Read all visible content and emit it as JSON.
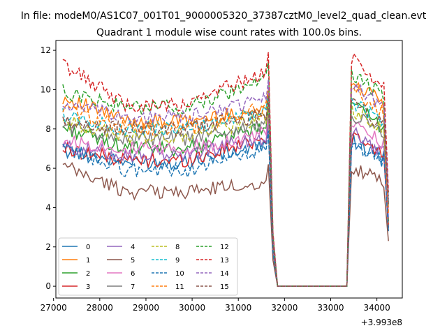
{
  "chart_data": {
    "type": "line",
    "suptitle": "In file: modeM0/AS1C07_001T01_9000005320_37387cztM0_level2_quad_clean.evt",
    "title": "Quadrant 1 module wise count rates with 100.0s bins.",
    "xlabel": "",
    "ylabel": "",
    "x_offset_label": "+3.993e8",
    "xlim": [
      27050,
      34550
    ],
    "ylim": [
      -0.6,
      12.5
    ],
    "xticks": [
      27000,
      28000,
      29000,
      30000,
      31000,
      32000,
      33000,
      34000
    ],
    "xtick_labels": [
      "27000",
      "28000",
      "29000",
      "30000",
      "31000",
      "32000",
      "33000",
      "34000"
    ],
    "yticks": [
      0,
      2,
      4,
      6,
      8,
      10,
      12
    ],
    "ytick_labels": [
      "0",
      "2",
      "4",
      "6",
      "8",
      "10",
      "12"
    ],
    "grid": false,
    "legend_position": "lower-left",
    "legend_columns": 4,
    "series": [
      {
        "name": "0",
        "color": "#1f77b4",
        "dash": "solid",
        "level": 6.3,
        "start": 6.9,
        "pre": 7.2,
        "mid": 7.4,
        "final": 2.8
      },
      {
        "name": "1",
        "color": "#ff7f0e",
        "dash": "solid",
        "level": 8.4,
        "start": 9.6,
        "pre": 9.0,
        "mid": 10.5,
        "final": 3.1
      },
      {
        "name": "2",
        "color": "#2ca02c",
        "dash": "solid",
        "level": 7.0,
        "start": 8.1,
        "pre": 8.1,
        "mid": 9.2,
        "final": 3.3
      },
      {
        "name": "3",
        "color": "#d62728",
        "dash": "solid",
        "level": 6.4,
        "start": 7.0,
        "pre": 7.6,
        "mid": 7.6,
        "final": 3.0
      },
      {
        "name": "4",
        "color": "#9467bd",
        "dash": "solid",
        "level": 6.7,
        "start": 7.1,
        "pre": 7.6,
        "mid": 7.8,
        "final": 3.5
      },
      {
        "name": "5",
        "color": "#8c564b",
        "dash": "solid",
        "level": 4.8,
        "start": 6.1,
        "pre": 5.3,
        "mid": 6.0,
        "final": 2.3
      },
      {
        "name": "6",
        "color": "#e377c2",
        "dash": "solid",
        "level": 7.0,
        "start": 7.4,
        "pre": 7.8,
        "mid": 8.3,
        "final": 3.8
      },
      {
        "name": "7",
        "color": "#7f7f7f",
        "dash": "solid",
        "level": 7.5,
        "start": 8.2,
        "pre": 8.3,
        "mid": 8.8,
        "final": 4.0
      },
      {
        "name": "8",
        "color": "#bcbd22",
        "dash": "dashed",
        "level": 7.6,
        "start": 8.4,
        "pre": 8.6,
        "mid": 9.0,
        "final": 4.2
      },
      {
        "name": "9",
        "color": "#17becf",
        "dash": "dashed",
        "level": 8.0,
        "start": 8.7,
        "pre": 8.9,
        "mid": 9.4,
        "final": 4.3
      },
      {
        "name": "10",
        "color": "#1f77b4",
        "dash": "dashed",
        "level": 5.9,
        "start": 7.0,
        "pre": 7.0,
        "mid": 7.2,
        "final": 2.9
      },
      {
        "name": "11",
        "color": "#ff7f0e",
        "dash": "dashed",
        "level": 8.0,
        "start": 9.1,
        "pre": 9.1,
        "mid": 10.0,
        "final": 3.7
      },
      {
        "name": "12",
        "color": "#2ca02c",
        "dash": "dashed",
        "level": 9.1,
        "start": 9.9,
        "pre": 10.5,
        "mid": 10.9,
        "final": 4.6
      },
      {
        "name": "13",
        "color": "#d62728",
        "dash": "dashed",
        "level": 9.2,
        "start": 11.3,
        "pre": 11.0,
        "mid": 11.6,
        "final": 4.8
      },
      {
        "name": "14",
        "color": "#9467bd",
        "dash": "dashed",
        "level": 8.6,
        "start": 9.2,
        "pre": 9.6,
        "mid": 10.4,
        "final": 4.4
      },
      {
        "name": "15",
        "color": "#8c564b",
        "dash": "dashed",
        "level": 8.0,
        "start": 8.3,
        "pre": 8.8,
        "mid": 9.3,
        "final": 4.1
      }
    ]
  }
}
